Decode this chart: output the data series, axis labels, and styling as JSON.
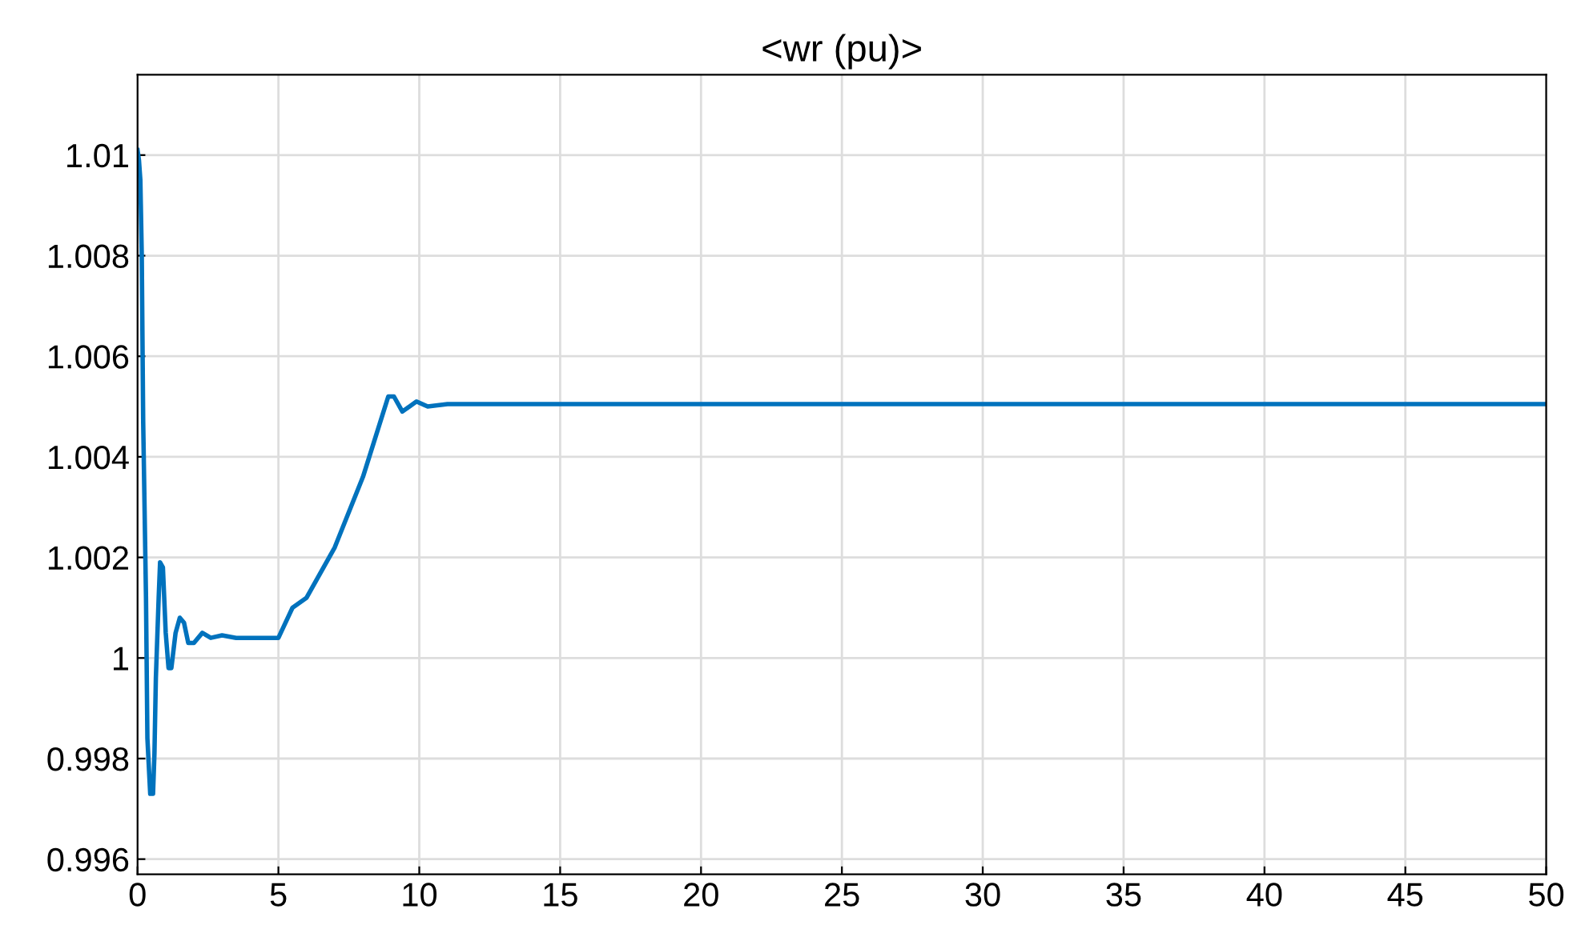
{
  "chart_data": {
    "type": "line",
    "title": "<wr (pu)>",
    "x": [
      0,
      0.05,
      0.1,
      0.15,
      0.2,
      0.3,
      0.35,
      0.45,
      0.55,
      0.6,
      0.65,
      0.75,
      0.8,
      0.9,
      1.0,
      1.1,
      1.2,
      1.35,
      1.5,
      1.65,
      1.8,
      2.0,
      2.3,
      2.6,
      3,
      3.5,
      5,
      5.5,
      6,
      7,
      8,
      8.9,
      9.1,
      9.4,
      9.9,
      10.3,
      11,
      50
    ],
    "series": [
      {
        "color": "#0072bd",
        "values": [
          1.0101,
          1.0099,
          1.0095,
          1.008,
          1.0047,
          1.0012,
          0.9984,
          0.9973,
          0.9973,
          0.9981,
          0.9996,
          1.0012,
          1.0019,
          1.0018,
          1.0005,
          0.9998,
          0.9998,
          1.0005,
          1.0008,
          1.0007,
          1.0003,
          1.0003,
          1.0005,
          1.0004,
          1.00045,
          1.0004,
          1.0004,
          1.001,
          1.0012,
          1.0022,
          1.0036,
          1.0052,
          1.0052,
          1.0049,
          1.0051,
          1.005,
          1.00505,
          1.00505
        ]
      }
    ],
    "xlim": [
      0,
      50
    ],
    "xticks": [
      0,
      5,
      10,
      15,
      20,
      25,
      30,
      35,
      40,
      45,
      50
    ],
    "ylim": [
      0.9957,
      1.0116
    ],
    "yticks": [
      0.996,
      0.998,
      1,
      1.002,
      1.004,
      1.006,
      1.008,
      1.01
    ],
    "grid": true
  }
}
